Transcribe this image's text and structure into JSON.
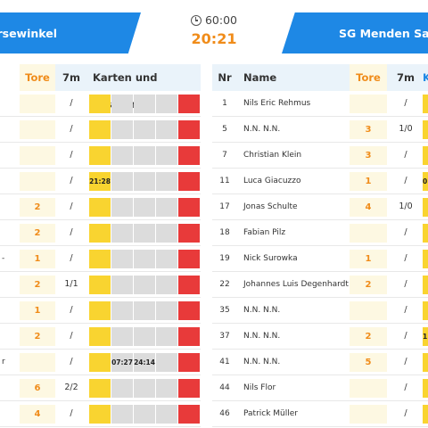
{
  "clock": {
    "icon": "clock-icon",
    "total": "60:00",
    "current": "20:21"
  },
  "teams": {
    "home_name": "ersewinkel",
    "away_name": "SG Menden Saue"
  },
  "left_table": {
    "headers": {
      "goals": "Tore",
      "seven_m": "7m",
      "cards": "Karten und Strafen"
    },
    "rows": [
      {
        "name_frag": "",
        "goals": "",
        "seven_m": "/",
        "card_time": "",
        "pen1": "",
        "pen2": ""
      },
      {
        "name_frag": "",
        "goals": "",
        "seven_m": "/",
        "card_time": "",
        "pen1": "",
        "pen2": ""
      },
      {
        "name_frag": "",
        "goals": "",
        "seven_m": "/",
        "card_time": "",
        "pen1": "",
        "pen2": ""
      },
      {
        "name_frag": "",
        "goals": "",
        "seven_m": "/",
        "card_time": "21:28",
        "pen1": "",
        "pen2": ""
      },
      {
        "name_frag": "",
        "goals": "2",
        "seven_m": "/",
        "card_time": "",
        "pen1": "",
        "pen2": ""
      },
      {
        "name_frag": "",
        "goals": "2",
        "seven_m": "/",
        "card_time": "",
        "pen1": "",
        "pen2": ""
      },
      {
        "name_frag": "-",
        "goals": "1",
        "seven_m": "/",
        "card_time": "",
        "pen1": "",
        "pen2": ""
      },
      {
        "name_frag": "",
        "goals": "2",
        "seven_m": "1/1",
        "card_time": "",
        "pen1": "",
        "pen2": ""
      },
      {
        "name_frag": "",
        "goals": "1",
        "seven_m": "/",
        "card_time": "",
        "pen1": "",
        "pen2": ""
      },
      {
        "name_frag": "",
        "goals": "2",
        "seven_m": "/",
        "card_time": "",
        "pen1": "",
        "pen2": ""
      },
      {
        "name_frag": "r",
        "goals": "",
        "seven_m": "/",
        "card_time": "",
        "pen1": "07:27",
        "pen2": "24:14"
      },
      {
        "name_frag": "",
        "goals": "6",
        "seven_m": "2/2",
        "card_time": "",
        "pen1": "",
        "pen2": ""
      },
      {
        "name_frag": "",
        "goals": "4",
        "seven_m": "/",
        "card_time": "",
        "pen1": "",
        "pen2": ""
      }
    ]
  },
  "right_table": {
    "headers": {
      "nr": "Nr",
      "name": "Name",
      "goals": "Tore",
      "seven_m": "7m",
      "cards_frag": "K"
    },
    "rows": [
      {
        "nr": "1",
        "name": "Nils Eric Rehmus",
        "goals": "",
        "seven_m": "/",
        "card_time": ""
      },
      {
        "nr": "5",
        "name": "N.N. N.N.",
        "goals": "3",
        "seven_m": "1/0",
        "card_time": ""
      },
      {
        "nr": "7",
        "name": "Christian Klein",
        "goals": "3",
        "seven_m": "/",
        "card_time": ""
      },
      {
        "nr": "11",
        "name": "Luca Giacuzzo",
        "goals": "1",
        "seven_m": "/",
        "card_time": "0"
      },
      {
        "nr": "17",
        "name": "Jonas Schulte",
        "goals": "4",
        "seven_m": "1/0",
        "card_time": ""
      },
      {
        "nr": "18",
        "name": "Fabian Pilz",
        "goals": "",
        "seven_m": "/",
        "card_time": ""
      },
      {
        "nr": "19",
        "name": "Nick Surowka",
        "goals": "1",
        "seven_m": "/",
        "card_time": ""
      },
      {
        "nr": "22",
        "name": "Johannes Luis Degenhardt",
        "goals": "2",
        "seven_m": "/",
        "card_time": ""
      },
      {
        "nr": "35",
        "name": "N.N. N.N.",
        "goals": "",
        "seven_m": "/",
        "card_time": ""
      },
      {
        "nr": "37",
        "name": "N.N. N.N.",
        "goals": "2",
        "seven_m": "/",
        "card_time": "1"
      },
      {
        "nr": "41",
        "name": "N.N. N.N.",
        "goals": "5",
        "seven_m": "/",
        "card_time": ""
      },
      {
        "nr": "44",
        "name": "Nils Flor",
        "goals": "",
        "seven_m": "/",
        "card_time": ""
      },
      {
        "nr": "46",
        "name": "Patrick Müller",
        "goals": "",
        "seven_m": "/",
        "card_time": ""
      }
    ]
  },
  "colors": {
    "banner": "#1e88e5",
    "clock_time": "#f08c1a",
    "header_bg": "#eaf3fa",
    "goals_bg": "#fdf8e2",
    "yellow_card": "#f9d430",
    "red_card": "#e83a3a",
    "empty_slot": "#dcdcdc"
  }
}
